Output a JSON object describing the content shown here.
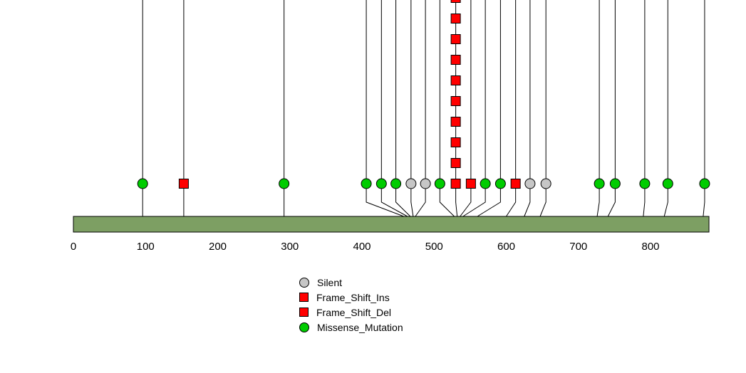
{
  "chart_data": {
    "type": "lollipop",
    "title": "",
    "protein_length": 881,
    "axis_ticks": [
      0,
      100,
      200,
      300,
      400,
      500,
      600,
      700,
      800
    ],
    "xlim": [
      0,
      881
    ],
    "gene_bar_color": "#7d9f63",
    "gene_bar_border": "#000000",
    "marker_colors": {
      "Silent": "#c6c6c6",
      "Frame_Shift_Ins": "#ff0000",
      "Frame_Shift_Del": "#ff0000",
      "Missense_Mutation": "#00cc00"
    },
    "marker_shapes": {
      "Silent": "circle",
      "Frame_Shift_Ins": "square",
      "Frame_Shift_Del": "square",
      "Missense_Mutation": "circle"
    },
    "legend": [
      {
        "label": "Silent",
        "shape": "circle",
        "color": "#c6c6c6"
      },
      {
        "label": "Frame_Shift_Ins",
        "shape": "square",
        "color": "#ff0000"
      },
      {
        "label": "Frame_Shift_Del",
        "shape": "square",
        "color": "#ff0000"
      },
      {
        "label": "Missense_Mutation",
        "shape": "circle",
        "color": "#00cc00"
      }
    ],
    "mutations": [
      {
        "display": 96,
        "anchor": 96,
        "type": "Missense_Mutation",
        "count": 1
      },
      {
        "display": 153,
        "anchor": 153,
        "type": "Frame_Shift_Del",
        "count": 1
      },
      {
        "display": 292,
        "anchor": 292,
        "type": "Missense_Mutation",
        "count": 1
      },
      {
        "display": 406,
        "anchor": 458,
        "type": "Missense_Mutation",
        "count": 1
      },
      {
        "display": 427,
        "anchor": 463,
        "type": "Missense_Mutation",
        "count": 1
      },
      {
        "display": 447,
        "anchor": 467,
        "type": "Missense_Mutation",
        "count": 1
      },
      {
        "display": 468,
        "anchor": 471,
        "type": "Silent",
        "count": 1
      },
      {
        "display": 488,
        "anchor": 474,
        "type": "Silent",
        "count": 1
      },
      {
        "display": 508,
        "anchor": 528,
        "type": "Missense_Mutation",
        "count": 1
      },
      {
        "display": 530,
        "anchor": 532,
        "type": "Frame_Shift_Ins",
        "count": 10
      },
      {
        "display": 551,
        "anchor": 536,
        "type": "Frame_Shift_Del",
        "count": 1
      },
      {
        "display": 571,
        "anchor": 540,
        "type": "Missense_Mutation",
        "count": 1
      },
      {
        "display": 592,
        "anchor": 560,
        "type": "Missense_Mutation",
        "count": 1
      },
      {
        "display": 613,
        "anchor": 600,
        "type": "Frame_Shift_Del",
        "count": 1
      },
      {
        "display": 633,
        "anchor": 625,
        "type": "Silent",
        "count": 1
      },
      {
        "display": 655,
        "anchor": 647,
        "type": "Silent",
        "count": 1
      },
      {
        "display": 729,
        "anchor": 726,
        "type": "Missense_Mutation",
        "count": 1
      },
      {
        "display": 751,
        "anchor": 741,
        "type": "Missense_Mutation",
        "count": 1
      },
      {
        "display": 792,
        "anchor": 790,
        "type": "Missense_Mutation",
        "count": 1
      },
      {
        "display": 824,
        "anchor": 819,
        "type": "Missense_Mutation",
        "count": 1
      },
      {
        "display": 875,
        "anchor": 873,
        "type": "Missense_Mutation",
        "count": 1
      }
    ]
  }
}
